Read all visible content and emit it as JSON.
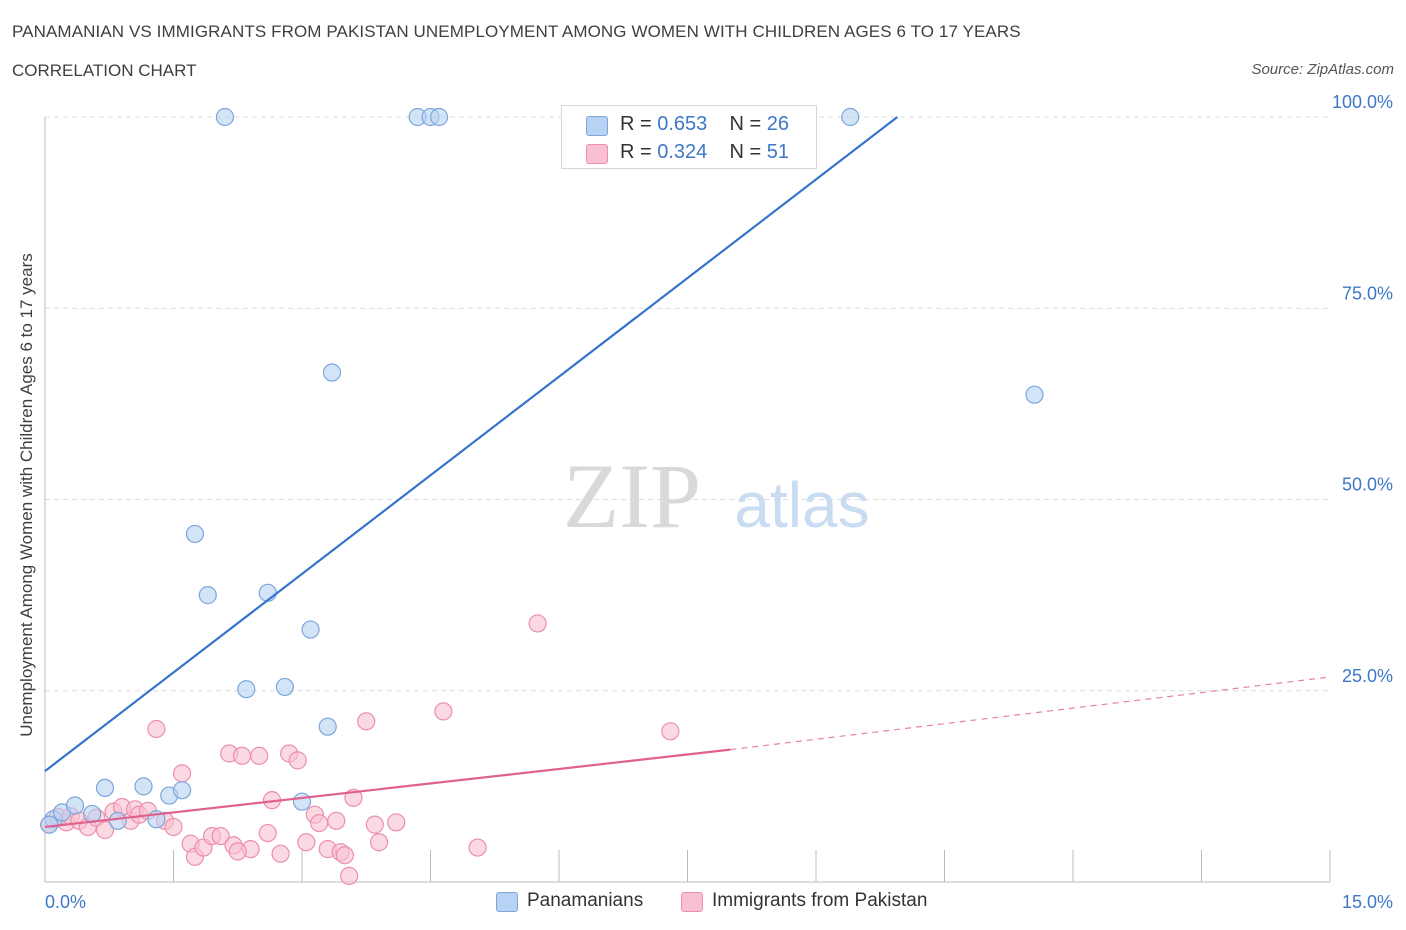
{
  "title": "PANAMANIAN VS IMMIGRANTS FROM PAKISTAN UNEMPLOYMENT AMONG WOMEN WITH CHILDREN AGES 6 TO 17 YEARS",
  "subtitle": "CORRELATION CHART",
  "source": "Source: ZipAtlas.com",
  "watermark": {
    "zip": "ZIP",
    "atlas": "atlas"
  },
  "legend": [
    {
      "r_label": "R = ",
      "r_value": "0.653",
      "n_label": "N = ",
      "n_value": "26"
    },
    {
      "r_label": "R = ",
      "r_value": "0.324",
      "n_label": "N = ",
      "n_value": "51"
    }
  ],
  "colors": {
    "blue_fill": "#b7d2f2",
    "blue_stroke": "#7ba6dc",
    "blue_line": "#3574cc",
    "pink_fill": "#f8c0d0",
    "pink_stroke": "#ec8fac",
    "pink_line": "#e0618e",
    "tick_label": "#3f77c8",
    "grid": "#dcdcdc"
  },
  "chart_data": {
    "type": "scatter",
    "title": "PANAMANIAN VS IMMIGRANTS FROM PAKISTAN UNEMPLOYMENT AMONG WOMEN WITH CHILDREN AGES 6 TO 17 YEARS",
    "xlabel": "",
    "ylabel": "Unemployment Among Women with Children Ages 6 to 17 years",
    "xlim": [
      0,
      15
    ],
    "ylim": [
      0,
      100
    ],
    "x_tick_labels": [
      {
        "x": 0,
        "label": "0.0%"
      },
      {
        "x": 15,
        "label": "15.0%"
      }
    ],
    "y_ticks": [
      {
        "y": 25,
        "label": "25.0%"
      },
      {
        "y": 50,
        "label": "50.0%"
      },
      {
        "y": 75,
        "label": "75.0%"
      },
      {
        "y": 100,
        "label": "100.0%"
      }
    ],
    "series": [
      {
        "name": "Panamanians",
        "r": 0.653,
        "n": 26,
        "points": [
          [
            0.1,
            8.2
          ],
          [
            0.2,
            9.1
          ],
          [
            0.35,
            10.0
          ],
          [
            0.55,
            8.9
          ],
          [
            0.7,
            12.3
          ],
          [
            0.85,
            8.0
          ],
          [
            1.15,
            12.5
          ],
          [
            1.3,
            8.2
          ],
          [
            1.45,
            11.3
          ],
          [
            1.6,
            12.0
          ],
          [
            1.75,
            45.5
          ],
          [
            1.9,
            37.5
          ],
          [
            2.1,
            100.0
          ],
          [
            2.35,
            25.2
          ],
          [
            2.6,
            37.8
          ],
          [
            2.8,
            25.5
          ],
          [
            3.0,
            10.5
          ],
          [
            3.1,
            33.0
          ],
          [
            3.3,
            20.3
          ],
          [
            3.35,
            66.6
          ],
          [
            4.35,
            100.0
          ],
          [
            4.5,
            100.0
          ],
          [
            4.6,
            100.0
          ],
          [
            9.4,
            100.0
          ],
          [
            11.55,
            63.7
          ],
          [
            0.05,
            7.5
          ]
        ],
        "trend": {
          "x0": 0.0,
          "y0": 14.5,
          "x1": 9.95,
          "y1": 100.0
        }
      },
      {
        "name": "Immigrants from Pakistan",
        "r": 0.324,
        "n": 51,
        "points": [
          [
            0.05,
            7.5
          ],
          [
            0.15,
            8.5
          ],
          [
            0.25,
            7.8
          ],
          [
            0.3,
            8.6
          ],
          [
            0.4,
            8.0
          ],
          [
            0.5,
            7.2
          ],
          [
            0.6,
            8.4
          ],
          [
            0.7,
            6.8
          ],
          [
            0.8,
            9.2
          ],
          [
            0.9,
            9.8
          ],
          [
            1.0,
            8.0
          ],
          [
            1.05,
            9.5
          ],
          [
            1.1,
            8.8
          ],
          [
            1.2,
            9.3
          ],
          [
            1.3,
            20.0
          ],
          [
            1.4,
            8.0
          ],
          [
            1.5,
            7.2
          ],
          [
            1.6,
            14.2
          ],
          [
            1.7,
            5.0
          ],
          [
            1.75,
            3.3
          ],
          [
            1.85,
            4.5
          ],
          [
            1.95,
            6.0
          ],
          [
            2.05,
            6.0
          ],
          [
            2.15,
            16.8
          ],
          [
            2.2,
            4.8
          ],
          [
            2.3,
            16.5
          ],
          [
            2.4,
            4.3
          ],
          [
            2.5,
            16.5
          ],
          [
            2.6,
            6.4
          ],
          [
            2.65,
            10.7
          ],
          [
            2.75,
            3.7
          ],
          [
            2.85,
            16.8
          ],
          [
            2.95,
            15.9
          ],
          [
            3.05,
            5.2
          ],
          [
            3.15,
            8.8
          ],
          [
            3.2,
            7.7
          ],
          [
            3.3,
            4.3
          ],
          [
            3.4,
            8.0
          ],
          [
            3.45,
            3.9
          ],
          [
            3.5,
            3.5
          ],
          [
            3.55,
            0.8
          ],
          [
            3.6,
            11.0
          ],
          [
            3.75,
            21.0
          ],
          [
            3.85,
            7.5
          ],
          [
            3.9,
            5.2
          ],
          [
            4.1,
            7.8
          ],
          [
            4.65,
            22.3
          ],
          [
            5.05,
            4.5
          ],
          [
            5.75,
            33.8
          ],
          [
            7.3,
            19.7
          ],
          [
            2.25,
            4.0
          ]
        ],
        "trend": {
          "x0": 0.0,
          "y0": 7.2,
          "x1": 8.0,
          "y1": 17.3
        },
        "trend_extension": {
          "x0": 8.0,
          "y0": 17.3,
          "x1": 15.0,
          "y1": 26.8
        }
      }
    ]
  }
}
